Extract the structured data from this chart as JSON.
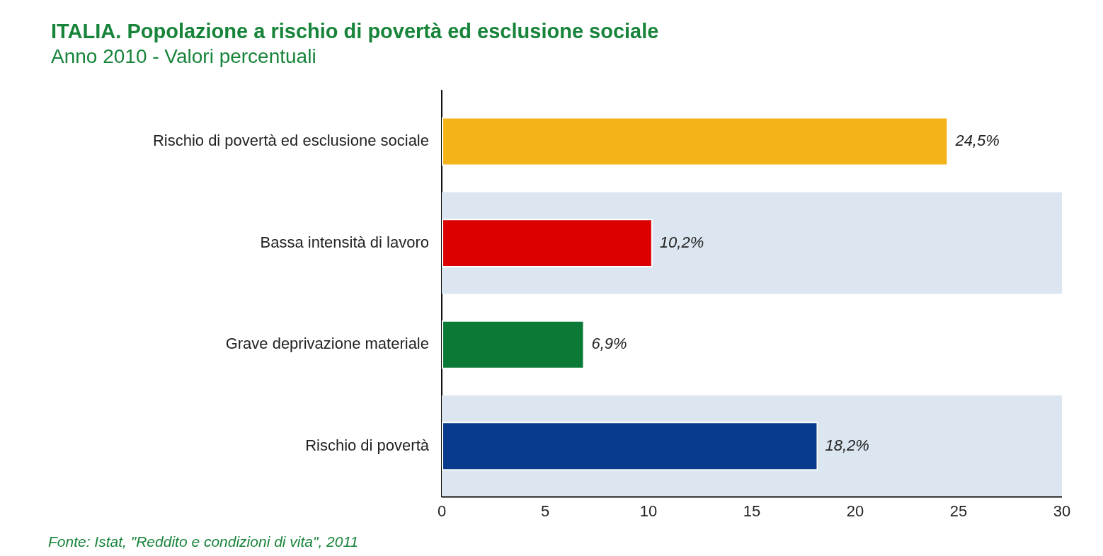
{
  "chart_data": {
    "type": "bar",
    "orientation": "horizontal",
    "title": "ITALIA. Popolazione a rischio di povertà ed esclusione sociale",
    "subtitle": "Anno 2010 - Valori percentuali",
    "categories": [
      "Rischio di povertà ed esclusione sociale",
      "Bassa intensità di lavoro",
      "Grave deprivazione materiale",
      "Rischio di povertà"
    ],
    "values": [
      24.5,
      10.2,
      6.9,
      18.2
    ],
    "colors": [
      "#f5b31a",
      "#dc0000",
      "#0a7a36",
      "#0a3a8c"
    ],
    "value_labels": [
      "24,5%",
      "10,2%",
      "6,9%",
      "18,2%"
    ],
    "xlim": [
      0,
      30
    ],
    "xticks": [
      0,
      5,
      10,
      15,
      20,
      25,
      30
    ],
    "grid": false,
    "legend": false,
    "bands": [
      {
        "axis": "y",
        "from": "Bassa intensità di lavoro",
        "to": "Bassa intensità di lavoro",
        "color": "#dce6f0"
      },
      {
        "axis": "y",
        "from": "Rischio di povertà",
        "to": "Rischio di povertà",
        "color": "#dce6f0"
      }
    ],
    "annotations": [
      "Fonte: Istat, \"Reddito e condizioni di vita\", 2011"
    ]
  }
}
